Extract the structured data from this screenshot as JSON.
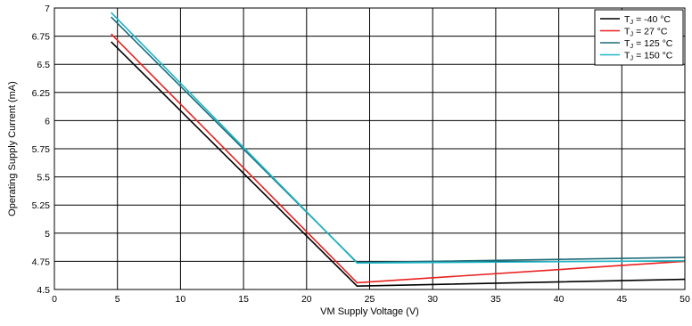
{
  "chart_data": {
    "type": "line",
    "title": "",
    "xlabel": "VM Supply Voltage (V)",
    "ylabel": "Operating Supply Current (mA)",
    "xlim": [
      0,
      50
    ],
    "ylim": [
      4.5,
      7
    ],
    "xticks": [
      0,
      5,
      10,
      15,
      20,
      25,
      30,
      35,
      40,
      45,
      50
    ],
    "xtick_labels": [
      "0",
      "5",
      "10",
      "15",
      "20",
      "25",
      "30",
      "35",
      "40",
      "45",
      "50"
    ],
    "yticks": [
      4.5,
      4.75,
      5,
      5.25,
      5.5,
      5.75,
      6,
      6.25,
      6.5,
      6.75,
      7
    ],
    "ytick_labels": [
      "4.5",
      "4.75",
      "5",
      "5.25",
      "5.5",
      "5.75",
      "6",
      "6.25",
      "6.5",
      "6.75",
      "7"
    ],
    "grid": true,
    "legend_position": "top-right",
    "series": [
      {
        "name": "TJ = -40 °C",
        "label_main": "T",
        "label_sub": "J",
        "label_rest": " = -40 °C",
        "color": "#000000",
        "x": [
          4.5,
          24,
          50
        ],
        "y": [
          6.7,
          4.53,
          4.59
        ]
      },
      {
        "name": "TJ = 27 °C",
        "label_main": "T",
        "label_sub": "J",
        "label_rest": " = 27 °C",
        "color": "#e8201e",
        "x": [
          4.5,
          24,
          50
        ],
        "y": [
          6.77,
          4.56,
          4.75
        ]
      },
      {
        "name": "TJ = 125 °C",
        "label_main": "T",
        "label_sub": "J",
        "label_rest": " = 125 °C",
        "color": "#1d6b79",
        "x": [
          4.5,
          24,
          50
        ],
        "y": [
          6.92,
          4.74,
          4.785
        ]
      },
      {
        "name": "TJ = 150 °C",
        "label_main": "T",
        "label_sub": "J",
        "label_rest": " = 150 °C",
        "color": "#1fb6c6",
        "x": [
          4.5,
          24,
          50
        ],
        "y": [
          6.96,
          4.735,
          4.755
        ]
      }
    ]
  }
}
